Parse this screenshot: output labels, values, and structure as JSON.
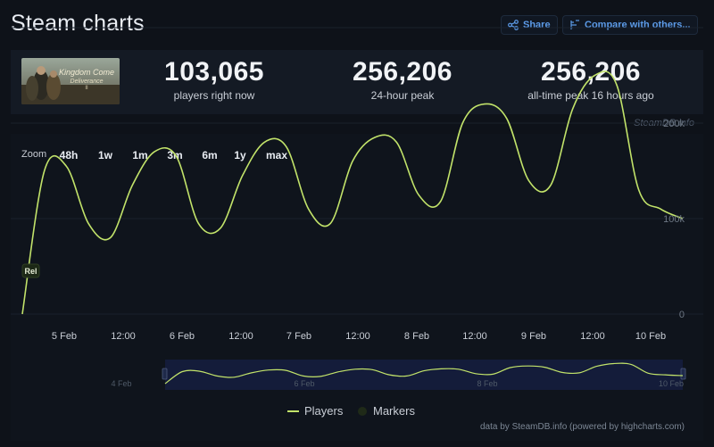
{
  "header": {
    "title": "Steam charts",
    "share_label": "Share",
    "compare_label": "Compare with others..."
  },
  "stats": {
    "current": {
      "value": "103,065",
      "label": "players right now"
    },
    "peak_24h": {
      "value": "256,206",
      "label": "24-hour peak"
    },
    "all_time": {
      "value": "256,206",
      "label": "all-time peak 16 hours ago"
    }
  },
  "credit": "SteamDB.info",
  "zoom": {
    "label": "Zoom",
    "options": [
      {
        "label": "48h",
        "active": true
      },
      {
        "label": "1w",
        "active": true
      },
      {
        "label": "1m",
        "active": false
      },
      {
        "label": "3m",
        "active": false
      },
      {
        "label": "6m",
        "active": false
      },
      {
        "label": "1y",
        "active": false
      },
      {
        "label": "max",
        "active": true
      }
    ]
  },
  "legend": {
    "players": "Players",
    "markers": "Markers"
  },
  "footer": "data by SteamDB.info (powered by highcharts.com)",
  "colors": {
    "line": "#c2e36a",
    "accent": "#5c9be8",
    "background": "#0e1219"
  },
  "chart_data": {
    "type": "line",
    "series": [
      {
        "name": "Players",
        "x": [
          "4 Feb 12:00",
          "4 Feb 16:00",
          "4 Feb 20:00",
          "5 Feb 00:00",
          "5 Feb 06:00",
          "5 Feb 12:00",
          "5 Feb 16:00",
          "5 Feb 20:00",
          "6 Feb 00:00",
          "6 Feb 06:00",
          "6 Feb 12:00",
          "6 Feb 16:00",
          "6 Feb 20:00",
          "7 Feb 00:00",
          "7 Feb 06:00",
          "7 Feb 12:00",
          "7 Feb 16:00",
          "7 Feb 20:00",
          "8 Feb 00:00",
          "8 Feb 06:00",
          "8 Feb 12:00",
          "8 Feb 16:00",
          "8 Feb 20:00",
          "9 Feb 00:00",
          "9 Feb 06:00",
          "9 Feb 12:00",
          "9 Feb 16:00",
          "9 Feb 20:00",
          "10 Feb 00:00",
          "10 Feb 06:00",
          "10 Feb 12:00"
        ],
        "values": [
          0,
          150000,
          155000,
          95000,
          80000,
          135000,
          170000,
          165000,
          95000,
          90000,
          145000,
          180000,
          175000,
          110000,
          95000,
          160000,
          185000,
          180000,
          125000,
          118000,
          200000,
          220000,
          205000,
          140000,
          135000,
          215000,
          250000,
          240000,
          130000,
          110000,
          100000
        ]
      }
    ],
    "x_ticks": [
      "5 Feb",
      "12:00",
      "6 Feb",
      "12:00",
      "7 Feb",
      "12:00",
      "8 Feb",
      "12:00",
      "9 Feb",
      "12:00",
      "10 Feb"
    ],
    "y_ticks": [
      "0",
      "100k",
      "200k"
    ],
    "ylim": [
      0,
      300000
    ],
    "markers": [
      {
        "label": "Rel",
        "x": "4 Feb 12:00"
      }
    ],
    "navigator_ticks": [
      "4 Feb",
      "6 Feb",
      "8 Feb",
      "10 Feb"
    ],
    "grid": true,
    "legend_position": "bottom"
  }
}
